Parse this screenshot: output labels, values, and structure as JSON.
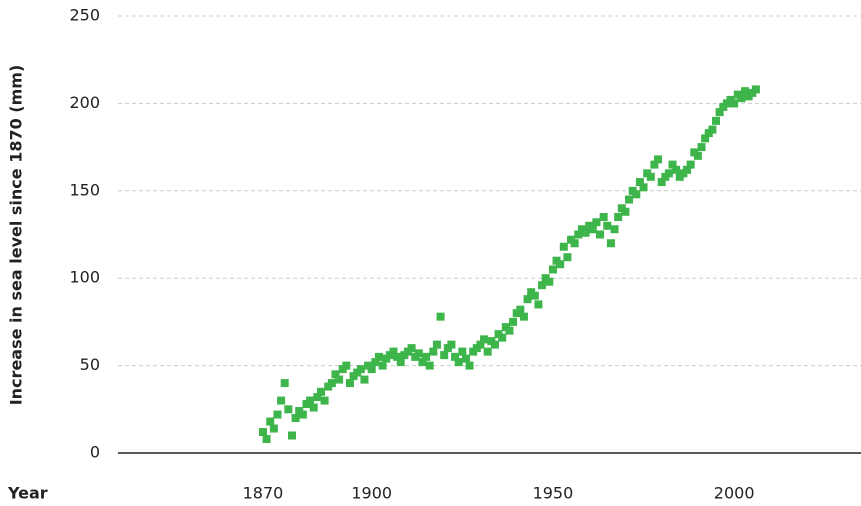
{
  "chart_data": {
    "type": "scatter",
    "y_label": "Increase in sea level since 1870 (mm)",
    "x_label": "Year",
    "color": "#3db54a",
    "grid": true,
    "xlim": [
      1830,
      2035
    ],
    "xticks": [
      1870,
      1900,
      1950,
      2000
    ],
    "ylim": [
      0,
      250
    ],
    "yticks": [
      0,
      50,
      100,
      150,
      200,
      250
    ],
    "x": [
      1870,
      1871,
      1872,
      1873,
      1874,
      1875,
      1876,
      1877,
      1878,
      1879,
      1880,
      1881,
      1882,
      1883,
      1884,
      1885,
      1886,
      1887,
      1888,
      1889,
      1890,
      1891,
      1892,
      1893,
      1894,
      1895,
      1896,
      1897,
      1898,
      1899,
      1900,
      1901,
      1902,
      1903,
      1904,
      1905,
      1906,
      1907,
      1908,
      1909,
      1910,
      1911,
      1912,
      1913,
      1914,
      1915,
      1916,
      1917,
      1918,
      1919,
      1920,
      1921,
      1922,
      1923,
      1924,
      1925,
      1926,
      1927,
      1928,
      1929,
      1930,
      1931,
      1932,
      1933,
      1934,
      1935,
      1936,
      1937,
      1938,
      1939,
      1940,
      1941,
      1942,
      1943,
      1944,
      1945,
      1946,
      1947,
      1948,
      1949,
      1950,
      1951,
      1952,
      1953,
      1954,
      1955,
      1956,
      1957,
      1958,
      1959,
      1960,
      1961,
      1962,
      1963,
      1964,
      1965,
      1966,
      1967,
      1968,
      1969,
      1970,
      1971,
      1972,
      1973,
      1974,
      1975,
      1976,
      1977,
      1978,
      1979,
      1980,
      1981,
      1982,
      1983,
      1984,
      1985,
      1986,
      1987,
      1988,
      1989,
      1990,
      1991,
      1992,
      1993,
      1994,
      1995,
      1996,
      1997,
      1998,
      1999,
      2000,
      2001,
      2002,
      2003,
      2004,
      2005,
      2006
    ],
    "values": [
      12,
      8,
      18,
      14,
      22,
      30,
      40,
      25,
      10,
      20,
      24,
      22,
      28,
      30,
      26,
      32,
      35,
      30,
      38,
      40,
      45,
      42,
      48,
      50,
      40,
      44,
      46,
      48,
      42,
      50,
      48,
      52,
      55,
      50,
      54,
      56,
      58,
      55,
      52,
      56,
      58,
      60,
      55,
      57,
      52,
      55,
      50,
      58,
      62,
      78,
      56,
      60,
      62,
      55,
      52,
      58,
      54,
      50,
      58,
      60,
      62,
      65,
      58,
      64,
      62,
      68,
      66,
      72,
      70,
      75,
      80,
      82,
      78,
      88,
      92,
      90,
      85,
      96,
      100,
      98,
      105,
      110,
      108,
      118,
      112,
      122,
      120,
      125,
      128,
      126,
      130,
      128,
      132,
      125,
      135,
      130,
      120,
      128,
      135,
      140,
      138,
      145,
      150,
      148,
      155,
      152,
      160,
      158,
      165,
      168,
      155,
      158,
      160,
      165,
      162,
      158,
      160,
      162,
      165,
      172,
      170,
      175,
      180,
      183,
      185,
      190,
      195,
      198,
      200,
      202,
      200,
      205,
      203,
      207,
      204,
      206,
      208
    ]
  }
}
